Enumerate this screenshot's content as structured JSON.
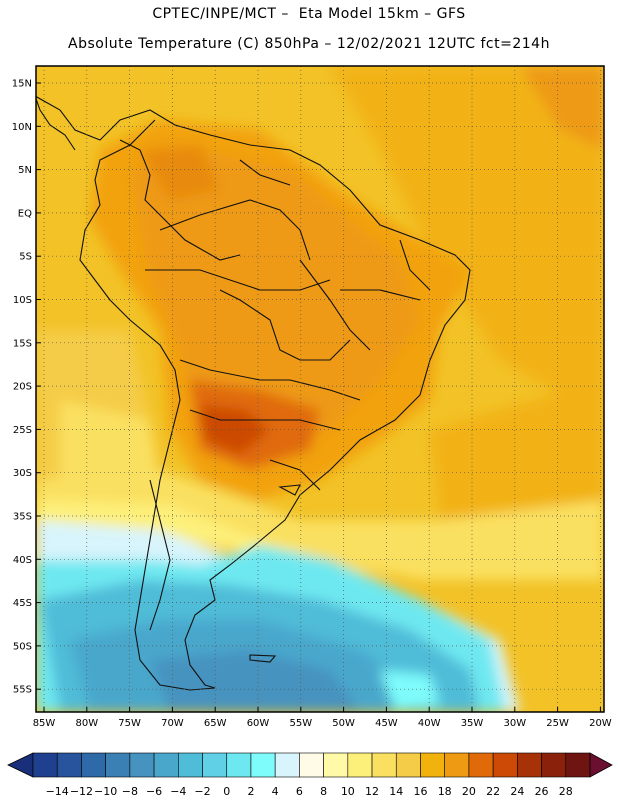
{
  "header": {
    "line1": "CPTEC/INPE/MCT –  Eta Model 15km – GFS",
    "line2": "Absolute Temperature (C) 850hPa – 12/02/2021 12UTC fct=214h"
  },
  "axes": {
    "lat_labels": [
      "15N",
      "10N",
      "5N",
      "EQ",
      "5S",
      "10S",
      "15S",
      "20S",
      "25S",
      "30S",
      "35S",
      "40S",
      "45S",
      "50S",
      "55S"
    ],
    "lon_labels": [
      "85W",
      "80W",
      "75W",
      "70W",
      "65W",
      "60W",
      "55W",
      "50W",
      "45W",
      "40W",
      "35W",
      "30W",
      "25W",
      "20W"
    ]
  },
  "colorbar": {
    "labels": [
      "-14",
      "-12",
      "-10",
      "-8",
      "-6",
      "-4",
      "-2",
      "0",
      "2",
      "4",
      "6",
      "8",
      "10",
      "12",
      "14",
      "16",
      "18",
      "20",
      "22",
      "24",
      "26",
      "28"
    ],
    "colors": [
      "#1f3f8f",
      "#27549c",
      "#2f6aa8",
      "#3b80b4",
      "#4693bf",
      "#4aa7cc",
      "#4fbcd8",
      "#5fd0e6",
      "#6ee8f0",
      "#7efcfc",
      "#d8f4fc",
      "#fffbe6",
      "#fff9a8",
      "#fdf07a",
      "#fae061",
      "#f5cc47",
      "#f2b20e",
      "#ee9a12",
      "#e06a08",
      "#cc4a06",
      "#a83207",
      "#8a220b",
      "#6e1512"
    ],
    "under_color": "#1a2f7a",
    "over_color": "#6a0f30"
  }
}
